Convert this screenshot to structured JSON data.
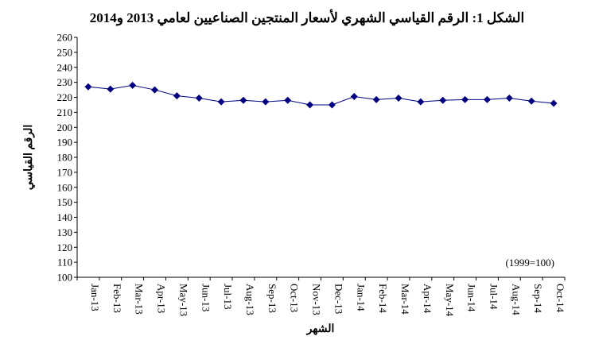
{
  "chart_data": {
    "type": "line",
    "title": "الشكل 1: الرقم القياسي الشهري لأسعار المنتجين الصناعيين لعامي 2013 و2014",
    "xlabel": "الشهر",
    "ylabel": "الرقم القياسي",
    "note": "(1999=100)",
    "ylim": [
      100,
      260
    ],
    "y_ticks": [
      "100",
      "110",
      "120",
      "130",
      "140",
      "150",
      "160",
      "170",
      "180",
      "190",
      "200",
      "210",
      "220",
      "230",
      "240",
      "250",
      "260"
    ],
    "categories": [
      "Jan-13",
      "Feb-13",
      "Mar-13",
      "Apr-13",
      "May-13",
      "Jun-13",
      "Jul-13",
      "Aug-13",
      "Sep-13",
      "Oct-13",
      "Nov-13",
      "Dec-13",
      "Jan-14",
      "Feb-14",
      "Mar-14",
      "Apr-14",
      "May-14",
      "Jun-14",
      "Jul-14",
      "Aug-14",
      "Sep-14",
      "Oct-14"
    ],
    "series": [
      {
        "name": "الرقم القياسي",
        "color": "#000080",
        "values": [
          227,
          225.5,
          228,
          225,
          221,
          219.5,
          217,
          218,
          217,
          218,
          215,
          215,
          220.5,
          218.5,
          219.5,
          217,
          218,
          218.5,
          218.5,
          219.5,
          217.5,
          216
        ]
      }
    ]
  }
}
